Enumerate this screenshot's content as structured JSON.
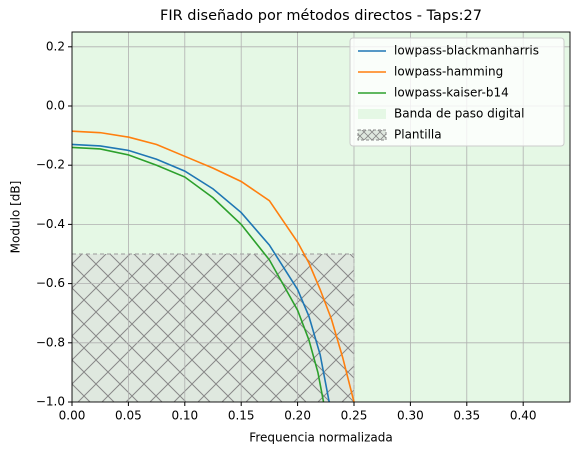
{
  "chart_data": {
    "type": "line",
    "title": "FIR diseñado por métodos directos - Taps:27",
    "xlabel": "Frequencia normalizada",
    "ylabel": "Modulo [dB]",
    "xlim": [
      0,
      0.4415
    ],
    "ylim": [
      -1.0,
      0.25
    ],
    "xticks": [
      {
        "value": 0,
        "label": "0.00"
      },
      {
        "value": 0.05,
        "label": "0.05"
      },
      {
        "value": 0.1,
        "label": "0.10"
      },
      {
        "value": 0.15,
        "label": "0.15"
      },
      {
        "value": 0.2,
        "label": "0.20"
      },
      {
        "value": 0.25,
        "label": "0.25"
      },
      {
        "value": 0.3,
        "label": "0.30"
      },
      {
        "value": 0.35,
        "label": "0.35"
      },
      {
        "value": 0.4,
        "label": "0.40"
      }
    ],
    "yticks": [
      {
        "value": -1,
        "label": "−1.0"
      },
      {
        "value": -0.8,
        "label": "−0.8"
      },
      {
        "value": -0.6,
        "label": "−0.6"
      },
      {
        "value": -0.4,
        "label": "−0.4"
      },
      {
        "value": -0.2,
        "label": "−0.2"
      },
      {
        "value": 0,
        "label": "0.0"
      },
      {
        "value": 0.2,
        "label": "0.2"
      }
    ],
    "grid": true,
    "legend": "upper right",
    "series": [
      {
        "name": "lowpass-blackmanharris",
        "color": "#1f77b4",
        "x": [
          0,
          0.025,
          0.05,
          0.075,
          0.1,
          0.125,
          0.15,
          0.175,
          0.2,
          0.21,
          0.22,
          0.228
        ],
        "values": [
          -0.13,
          -0.135,
          -0.15,
          -0.18,
          -0.22,
          -0.28,
          -0.36,
          -0.47,
          -0.62,
          -0.71,
          -0.84,
          -1.0
        ]
      },
      {
        "name": "lowpass-hamming",
        "color": "#ff7f0e",
        "x": [
          0,
          0.025,
          0.05,
          0.075,
          0.1,
          0.125,
          0.15,
          0.175,
          0.2,
          0.21,
          0.22,
          0.23,
          0.24,
          0.25
        ],
        "values": [
          -0.085,
          -0.09,
          -0.105,
          -0.13,
          -0.17,
          -0.21,
          -0.255,
          -0.32,
          -0.46,
          -0.53,
          -0.62,
          -0.72,
          -0.85,
          -1.0
        ]
      },
      {
        "name": "lowpass-kaiser-b14",
        "color": "#2ca02c",
        "x": [
          0,
          0.025,
          0.05,
          0.075,
          0.1,
          0.125,
          0.15,
          0.175,
          0.2,
          0.21,
          0.218,
          0.223
        ],
        "values": [
          -0.14,
          -0.145,
          -0.165,
          -0.2,
          -0.24,
          -0.31,
          -0.4,
          -0.52,
          -0.69,
          -0.79,
          -0.9,
          -1.0
        ]
      }
    ],
    "band": {
      "name": "Banda de paso digital",
      "color": "#e5f8e5",
      "x": [
        0,
        0.4415
      ]
    },
    "template": {
      "name": "Plantilla",
      "x": [
        0,
        0.25
      ],
      "y": [
        -1.0,
        -0.5
      ]
    }
  }
}
